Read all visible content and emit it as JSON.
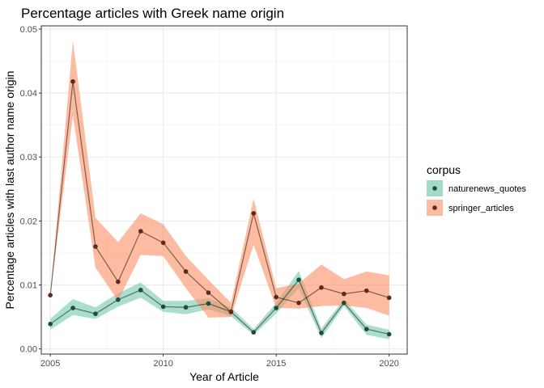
{
  "chart_data": {
    "type": "line",
    "title": "Percentage articles with Greek name origin",
    "xlabel": "Year of Article",
    "ylabel": "Percentage articles with last author name origin",
    "xlim": [
      2004.6,
      2020.8
    ],
    "ylim": [
      -0.0008,
      0.0505
    ],
    "x_ticks": [
      2005,
      2010,
      2015,
      2020
    ],
    "x_tick_labels": [
      "2005",
      "2010",
      "2015",
      "2020"
    ],
    "y_ticks": [
      0,
      0.01,
      0.02,
      0.03,
      0.04,
      0.05
    ],
    "y_tick_labels": [
      "0.00",
      "0.01",
      "0.02",
      "0.03",
      "0.04",
      "0.05"
    ],
    "grid": true,
    "legend_title": "corpus",
    "legend_position": "right",
    "x": [
      2005,
      2006,
      2007,
      2008,
      2009,
      2010,
      2011,
      2012,
      2013,
      2014,
      2015,
      2016,
      2017,
      2018,
      2019,
      2020
    ],
    "series": [
      {
        "name": "naturenews_quotes",
        "color": "#66c2a5",
        "values": [
          0.0039,
          0.0064,
          0.0055,
          0.0077,
          0.0092,
          0.0066,
          0.0065,
          0.0071,
          0.0058,
          0.0026,
          0.0064,
          0.0108,
          0.0025,
          0.0072,
          0.0031,
          0.0023
        ],
        "lower": [
          0.003,
          0.0053,
          0.0047,
          0.0066,
          0.008,
          0.0058,
          0.0054,
          0.0062,
          0.0051,
          0.0022,
          0.0055,
          0.0095,
          0.0017,
          0.0067,
          0.0022,
          0.0015
        ],
        "upper": [
          0.0047,
          0.0078,
          0.0065,
          0.0087,
          0.0104,
          0.0075,
          0.0075,
          0.0079,
          0.0065,
          0.0031,
          0.0072,
          0.0122,
          0.0032,
          0.0078,
          0.0038,
          0.003
        ]
      },
      {
        "name": "springer_articles",
        "color": "#fc8d62",
        "values": [
          0.0084,
          0.0418,
          0.016,
          0.0105,
          0.0184,
          0.0166,
          0.0121,
          0.0088,
          0.0058,
          0.0212,
          0.0081,
          0.0072,
          0.0096,
          0.0086,
          0.0091,
          0.008
        ],
        "lower": [
          0.0084,
          0.0365,
          0.0127,
          0.0075,
          0.0147,
          0.0145,
          0.0095,
          0.0049,
          0.005,
          0.0163,
          0.0064,
          0.0063,
          0.0067,
          0.0068,
          0.0064,
          0.0052
        ],
        "upper": [
          0.0084,
          0.0482,
          0.0205,
          0.0167,
          0.0212,
          0.0195,
          0.0145,
          0.0108,
          0.0072,
          0.0235,
          0.0095,
          0.0102,
          0.0132,
          0.0109,
          0.0121,
          0.0115
        ]
      }
    ]
  }
}
